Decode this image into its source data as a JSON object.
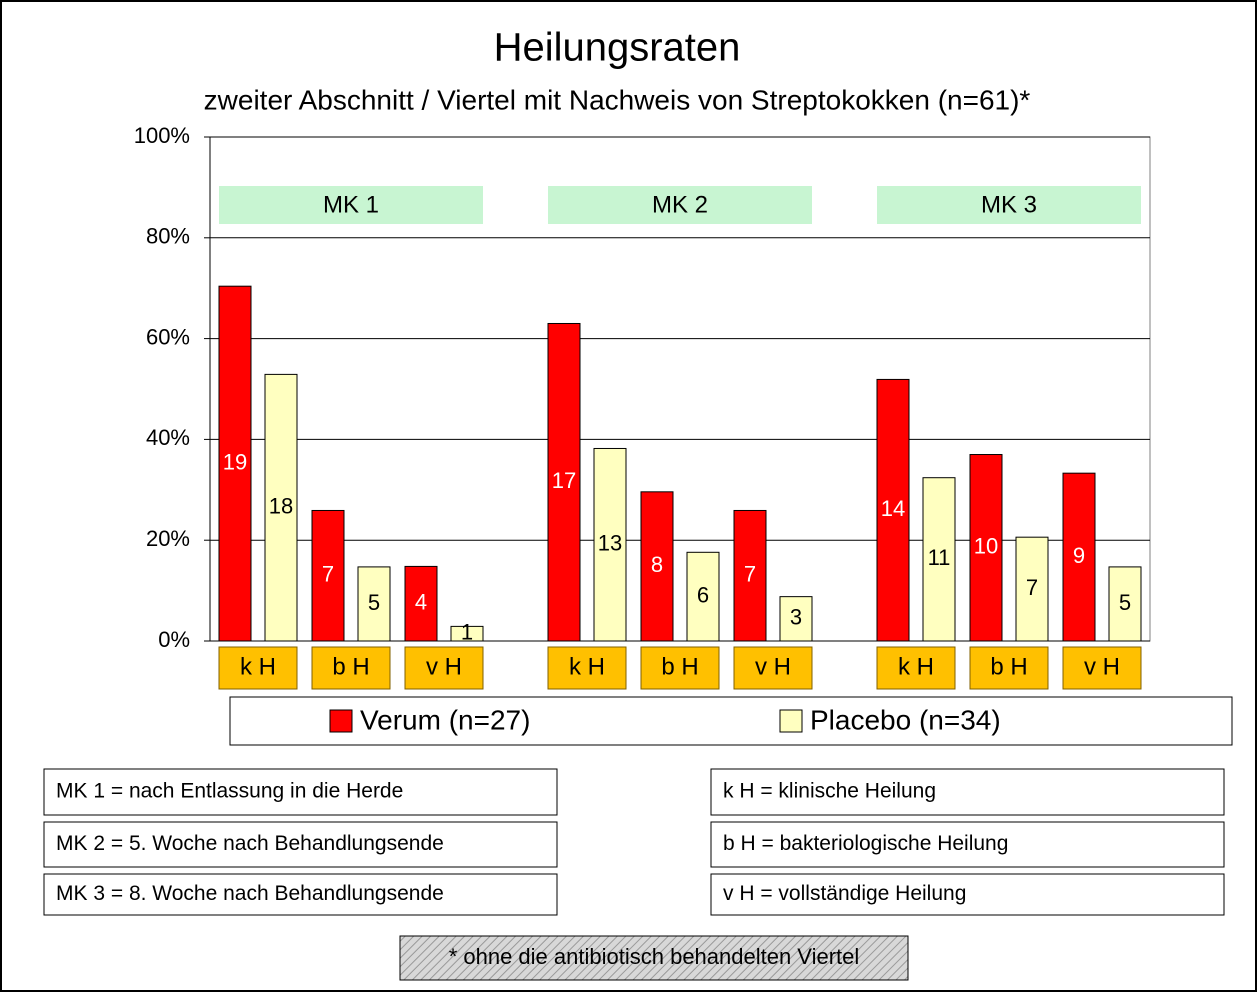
{
  "chart_data": {
    "type": "bar",
    "title": "Heilungsraten",
    "subtitle": "zweiter Abschnitt / Viertel mit Nachweis von Streptokokken (n=61)*",
    "groups": [
      "MK 1",
      "MK 2",
      "MK 3"
    ],
    "categories": [
      "k H",
      "b H",
      "v H",
      "k H",
      "b H",
      "v H",
      "k H",
      "b H",
      "v H"
    ],
    "series": [
      {
        "name": "Verum (n=27)",
        "color": "#ff0000",
        "values": [
          70.4,
          25.9,
          14.8,
          63.0,
          29.6,
          25.9,
          51.9,
          37.0,
          33.3
        ],
        "counts": [
          "19",
          "7",
          "4",
          "17",
          "8",
          "7",
          "14",
          "10",
          "9"
        ]
      },
      {
        "name": "Placebo (n=34)",
        "color": "#ffffc0",
        "values": [
          52.9,
          14.7,
          2.9,
          38.2,
          17.6,
          8.8,
          32.4,
          20.6,
          14.7
        ],
        "counts": [
          "18",
          "5",
          "1",
          "13",
          "6",
          "3",
          "11",
          "7",
          "5"
        ]
      }
    ],
    "ylim": [
      0,
      100
    ],
    "yticks": [
      {
        "value": 0,
        "label": "0%"
      },
      {
        "value": 20,
        "label": "20%"
      },
      {
        "value": 40,
        "label": "40%"
      },
      {
        "value": 60,
        "label": "60%"
      },
      {
        "value": 80,
        "label": "80%"
      },
      {
        "value": 100,
        "label": "100%"
      }
    ],
    "grid": true,
    "notes": [
      "MK 1 = nach Entlassung in die Herde",
      "MK 2 = 5. Woche nach Behandlungsende",
      "MK 3 = 8. Woche nach Behandlungsende",
      "k H = klinische Heilung",
      "b H = bakteriologische Heilung",
      "v H = vollständige Heilung"
    ],
    "footnote": "* ohne die antibiotisch behandelten Viertel"
  }
}
